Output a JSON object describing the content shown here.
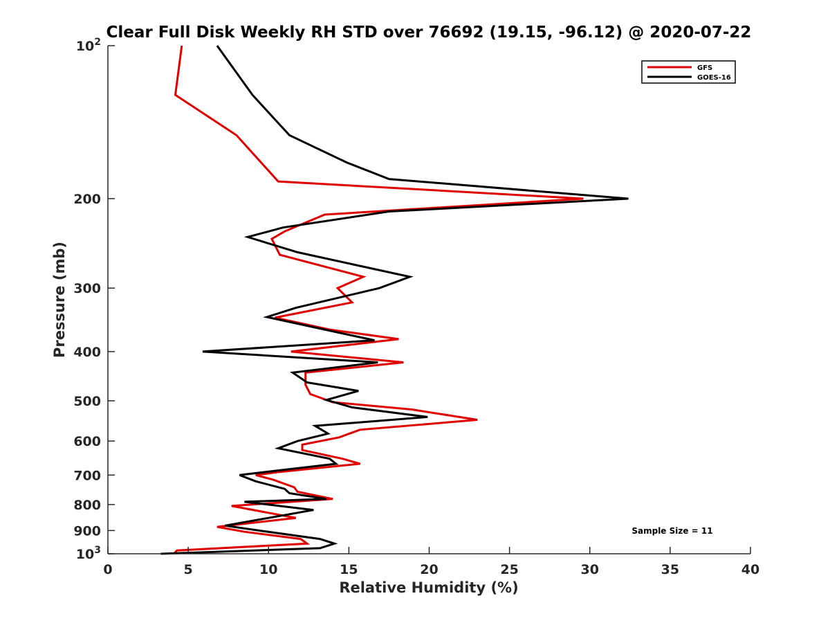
{
  "chart_data": {
    "type": "line",
    "title": "Clear Full Disk Weekly RH STD over 76692 (19.15, -96.12) @ 2020-07-22",
    "xlabel": "Relative Humidity (%)",
    "ylabel": "Pressure (mb)",
    "xlim": [
      0,
      40
    ],
    "ylim": [
      100,
      1000
    ],
    "yscale": "log",
    "y_reversed": true,
    "xticks": [
      {
        "value": 0,
        "label": "0"
      },
      {
        "value": 5,
        "label": "5"
      },
      {
        "value": 10,
        "label": "10"
      },
      {
        "value": 15,
        "label": "15"
      },
      {
        "value": 20,
        "label": "20"
      },
      {
        "value": 25,
        "label": "25"
      },
      {
        "value": 30,
        "label": "30"
      },
      {
        "value": 35,
        "label": "35"
      },
      {
        "value": 40,
        "label": "40"
      }
    ],
    "yticks": [
      {
        "value": 100,
        "label": "10",
        "sup": "2"
      },
      {
        "value": 200,
        "label": "200"
      },
      {
        "value": 300,
        "label": "300"
      },
      {
        "value": 400,
        "label": "400"
      },
      {
        "value": 500,
        "label": "500"
      },
      {
        "value": 600,
        "label": "600"
      },
      {
        "value": 700,
        "label": "700"
      },
      {
        "value": 800,
        "label": "800"
      },
      {
        "value": 900,
        "label": "900"
      },
      {
        "value": 1000,
        "label": "10",
        "sup": "3"
      }
    ],
    "legend_position": "top-right",
    "annotation": "Sample Size = 11",
    "series": [
      {
        "name": "GFS",
        "color": "#e00000",
        "points": [
          [
            4.6,
            100
          ],
          [
            4.2,
            125
          ],
          [
            8.0,
            150
          ],
          [
            10.6,
            185
          ],
          [
            29.6,
            200
          ],
          [
            13.5,
            215
          ],
          [
            11.0,
            232
          ],
          [
            10.2,
            240
          ],
          [
            10.7,
            258
          ],
          [
            15.9,
            285
          ],
          [
            14.3,
            300
          ],
          [
            15.2,
            320
          ],
          [
            10.4,
            343
          ],
          [
            13.8,
            362
          ],
          [
            18.1,
            378
          ],
          [
            11.4,
            400
          ],
          [
            18.4,
            420
          ],
          [
            12.3,
            440
          ],
          [
            12.3,
            465
          ],
          [
            12.6,
            485
          ],
          [
            14.0,
            503
          ],
          [
            18.9,
            520
          ],
          [
            23.0,
            545
          ],
          [
            15.7,
            570
          ],
          [
            14.4,
            590
          ],
          [
            12.1,
            610
          ],
          [
            12.1,
            625
          ],
          [
            14.6,
            650
          ],
          [
            15.7,
            665
          ],
          [
            10.7,
            690
          ],
          [
            9.2,
            700
          ],
          [
            10.3,
            715
          ],
          [
            11.6,
            740
          ],
          [
            11.8,
            755
          ],
          [
            14.0,
            780
          ],
          [
            7.7,
            805
          ],
          [
            11.7,
            850
          ],
          [
            6.8,
            885
          ],
          [
            8.5,
            905
          ],
          [
            12.0,
            935
          ],
          [
            12.4,
            955
          ],
          [
            4.3,
            985
          ],
          [
            4.1,
            1000
          ]
        ]
      },
      {
        "name": "GOES-16",
        "color": "#000000",
        "points": [
          [
            6.8,
            100
          ],
          [
            9.0,
            125
          ],
          [
            11.3,
            150
          ],
          [
            14.9,
            170
          ],
          [
            17.5,
            183
          ],
          [
            32.4,
            200
          ],
          [
            17.5,
            212
          ],
          [
            10.9,
            228
          ],
          [
            8.7,
            238
          ],
          [
            11.8,
            255
          ],
          [
            18.8,
            285
          ],
          [
            16.9,
            300
          ],
          [
            11.7,
            328
          ],
          [
            9.9,
            342
          ],
          [
            14.0,
            365
          ],
          [
            16.6,
            380
          ],
          [
            5.9,
            400
          ],
          [
            16.8,
            420
          ],
          [
            11.5,
            440
          ],
          [
            12.4,
            460
          ],
          [
            15.6,
            478
          ],
          [
            13.6,
            498
          ],
          [
            15.2,
            515
          ],
          [
            19.9,
            538
          ],
          [
            12.9,
            560
          ],
          [
            13.7,
            580
          ],
          [
            11.8,
            600
          ],
          [
            10.6,
            620
          ],
          [
            13.8,
            650
          ],
          [
            14.2,
            665
          ],
          [
            10.7,
            685
          ],
          [
            8.2,
            700
          ],
          [
            9.2,
            720
          ],
          [
            11.0,
            745
          ],
          [
            11.3,
            760
          ],
          [
            13.6,
            780
          ],
          [
            8.5,
            790
          ],
          [
            12.8,
            820
          ],
          [
            7.3,
            880
          ],
          [
            9.4,
            900
          ],
          [
            13.2,
            935
          ],
          [
            14.1,
            955
          ],
          [
            13.2,
            975
          ],
          [
            3.3,
            1000
          ]
        ]
      }
    ]
  }
}
